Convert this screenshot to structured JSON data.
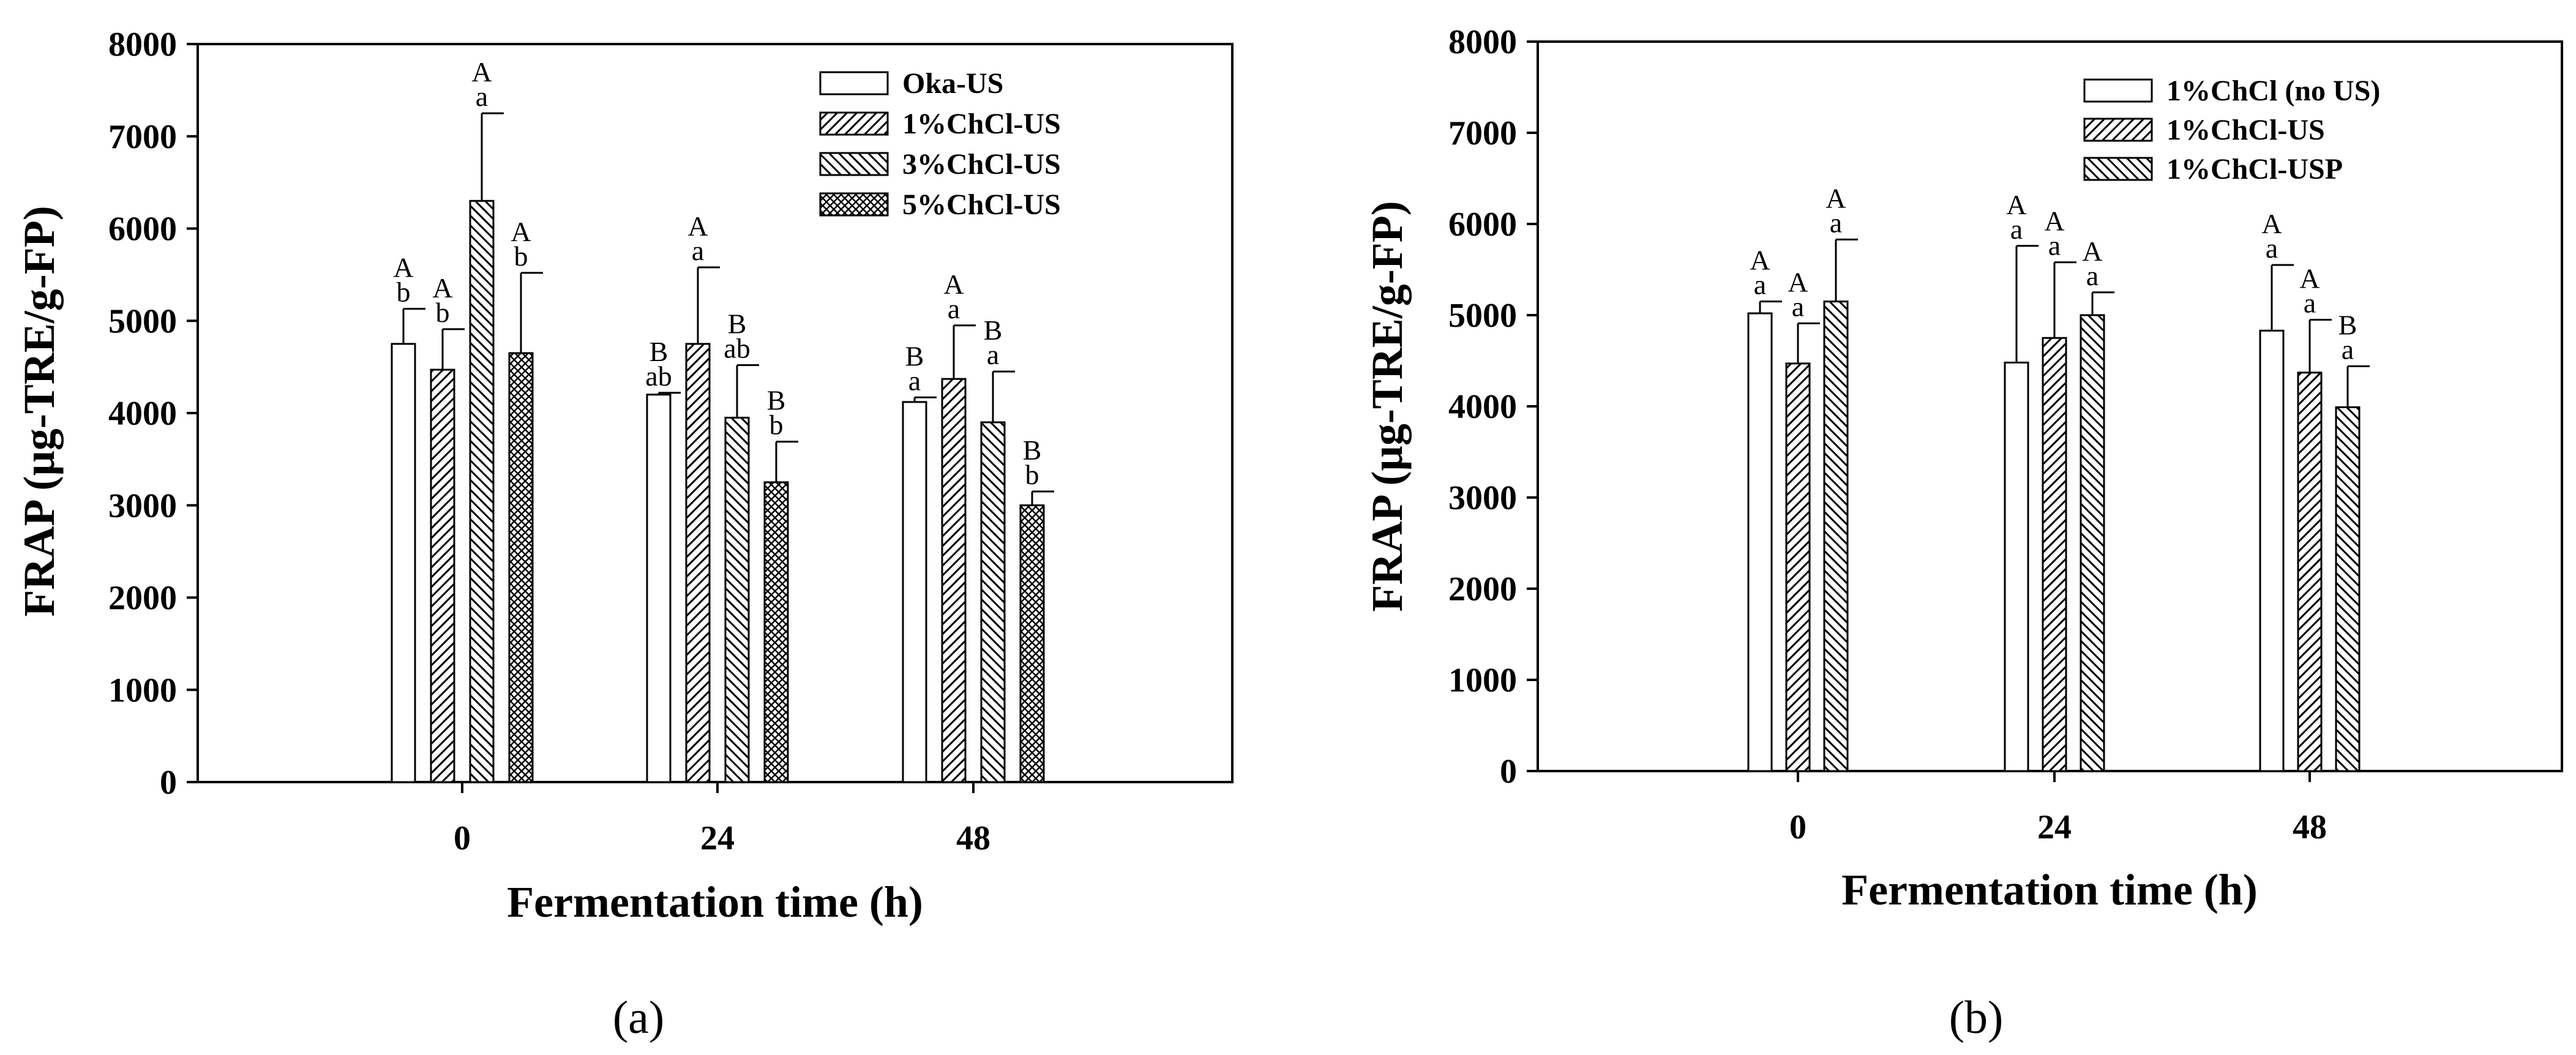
{
  "chart_data": [
    {
      "type": "bar",
      "panel_label": "(a)",
      "xlabel": "Fermentation time (h)",
      "ylabel": "FRAP (µg-TRE/g-FP)",
      "ylim": [
        0,
        8000
      ],
      "yticks": [
        "0",
        "1000",
        "2000",
        "3000",
        "4000",
        "5000",
        "6000",
        "7000",
        "8000"
      ],
      "categories": [
        "0",
        "24",
        "48"
      ],
      "legend_position": "top-right",
      "series": [
        {
          "name": "Oka-US",
          "pattern": "open",
          "values": [
            4750,
            4200,
            4120
          ],
          "errors": [
            380,
            20,
            50
          ],
          "letters": [
            [
              "A",
              "b"
            ],
            [
              "B",
              "ab"
            ],
            [
              "B",
              "a"
            ]
          ]
        },
        {
          "name": "1%ChCl-US",
          "pattern": "hatch-forward",
          "values": [
            4470,
            4750,
            4370
          ],
          "errors": [
            440,
            830,
            580
          ],
          "letters": [
            [
              "A",
              "b"
            ],
            [
              "A",
              "a"
            ],
            [
              "A",
              "a"
            ]
          ]
        },
        {
          "name": "3%ChCl-US",
          "pattern": "hatch-back",
          "values": [
            6300,
            3950,
            3900
          ],
          "errors": [
            950,
            570,
            550
          ],
          "letters": [
            [
              "A",
              "a"
            ],
            [
              "B",
              "ab"
            ],
            [
              "B",
              "a"
            ]
          ]
        },
        {
          "name": "5%ChCl-US",
          "pattern": "crosshatch",
          "values": [
            4650,
            3250,
            3000
          ],
          "errors": [
            870,
            440,
            150
          ],
          "letters": [
            [
              "A",
              "b"
            ],
            [
              "B",
              "b"
            ],
            [
              "B",
              "b"
            ]
          ]
        }
      ]
    },
    {
      "type": "bar",
      "panel_label": "(b)",
      "xlabel": "Fermentation time (h)",
      "ylabel": "FRAP (µg-TRE/g-FP)",
      "ylim": [
        0,
        8000
      ],
      "yticks": [
        "0",
        "1000",
        "2000",
        "3000",
        "4000",
        "5000",
        "6000",
        "7000",
        "8000"
      ],
      "categories": [
        "0",
        "24",
        "48"
      ],
      "legend_position": "top-right",
      "series": [
        {
          "name": "1%ChCl (no US)",
          "pattern": "open",
          "values": [
            5020,
            4480,
            4830
          ],
          "errors": [
            130,
            1280,
            720
          ],
          "letters": [
            [
              "A",
              "a"
            ],
            [
              "A",
              "a"
            ],
            [
              "A",
              "a"
            ]
          ]
        },
        {
          "name": "1%ChCl-US",
          "pattern": "hatch-forward",
          "values": [
            4470,
            4750,
            4370
          ],
          "errors": [
            440,
            830,
            580
          ],
          "letters": [
            [
              "A",
              "a"
            ],
            [
              "A",
              "a"
            ],
            [
              "A",
              "a"
            ]
          ]
        },
        {
          "name": "1%ChCl-USP",
          "pattern": "hatch-back",
          "values": [
            5150,
            5000,
            3990
          ],
          "errors": [
            680,
            250,
            450
          ],
          "letters": [
            [
              "A",
              "a"
            ],
            [
              "A",
              "a"
            ],
            [
              "B",
              "a"
            ]
          ]
        }
      ]
    }
  ]
}
